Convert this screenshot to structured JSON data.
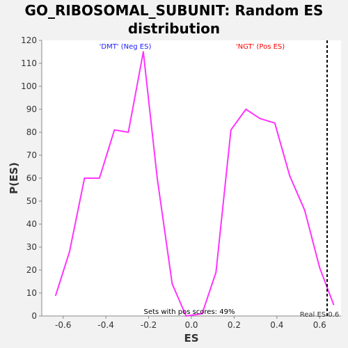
{
  "chart_data": {
    "type": "line",
    "title_line1": "GO_RIBOSOMAL_SUBUNIT: Random ES",
    "title_line2": "distribution",
    "xlabel": "ES",
    "ylabel": "P(ES)",
    "xlim": [
      -0.7,
      0.7
    ],
    "ylim": [
      0,
      120
    ],
    "xticks": [
      -0.6,
      -0.4,
      -0.2,
      0.0,
      0.2,
      0.4,
      0.6
    ],
    "xtick_labels": [
      "-0.6",
      "-0.4",
      "-0.2",
      "0.0",
      "0.2",
      "0.4",
      "0.6"
    ],
    "yticks": [
      0,
      10,
      20,
      30,
      40,
      50,
      60,
      70,
      80,
      90,
      100,
      110,
      120
    ],
    "series": [
      {
        "color": "#ff33ff",
        "x": [
          -0.635,
          -0.57,
          -0.5,
          -0.43,
          -0.36,
          -0.295,
          -0.225,
          -0.16,
          -0.09,
          -0.025,
          0.05,
          0.115,
          0.185,
          0.255,
          0.32,
          0.39,
          0.46,
          0.53,
          0.6,
          0.665
        ],
        "y": [
          9,
          28,
          60,
          60,
          81,
          80,
          115,
          60,
          14,
          0,
          1,
          19,
          81,
          90,
          86,
          84,
          61,
          46,
          21,
          5
        ]
      }
    ],
    "real_es": 0.635,
    "real_es_label": "Real ES 0.6",
    "neg_label": "'DMT' (Neg ES)",
    "neg_color": "#1a1aff",
    "pos_label": "'NGT' (Pos ES)",
    "pos_color": "#ff0000",
    "footer_text": "Sets with pos scores: 49%",
    "plot_bg": "#ffffff",
    "grid": false
  }
}
